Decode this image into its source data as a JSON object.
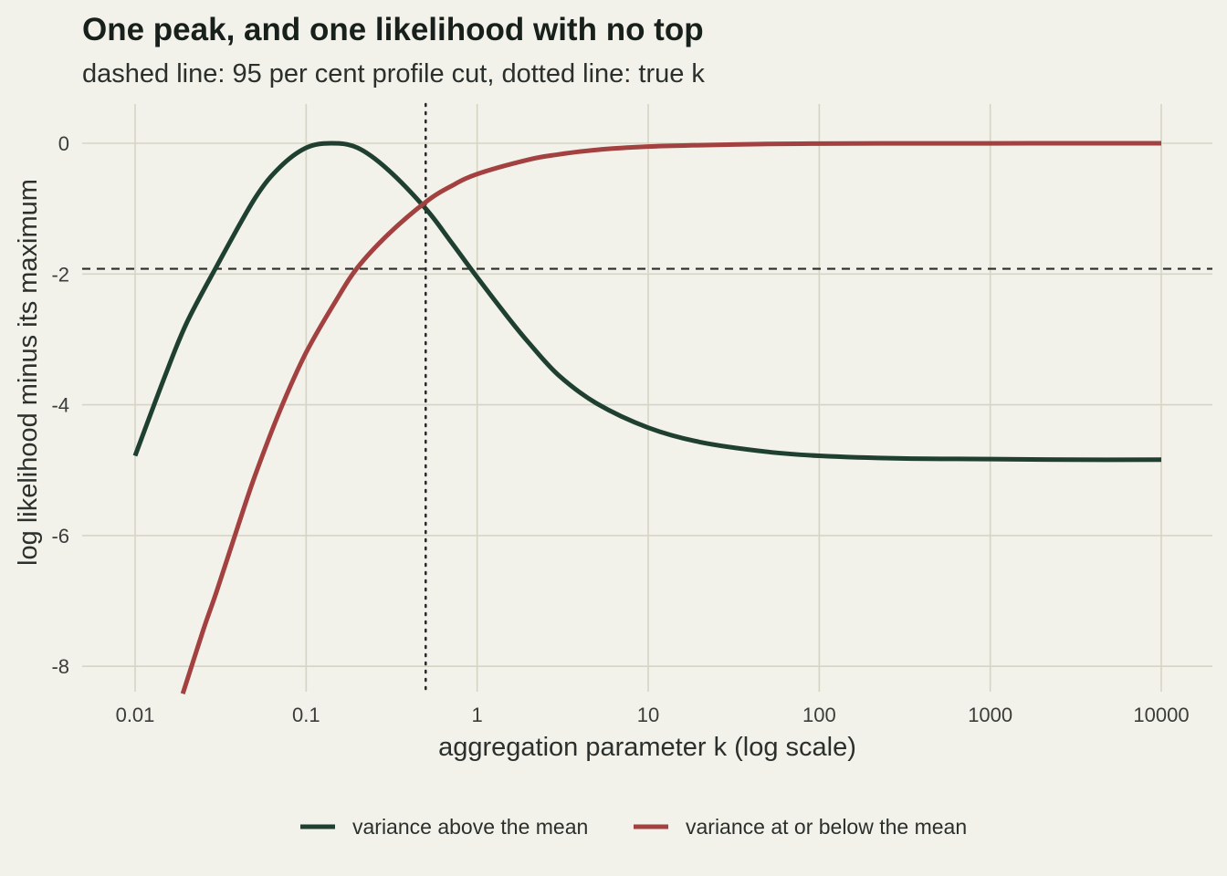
{
  "chart_data": {
    "type": "line",
    "title": "One peak, and one likelihood with no top",
    "subtitle": "dashed line: 95 per cent profile cut, dotted line: true k",
    "xlabel": "aggregation parameter k (log scale)",
    "ylabel": "log likelihood minus its maximum",
    "x_scale": "log10",
    "xlim": [
      0.01,
      10000
    ],
    "ylim": [
      -8.4,
      0.6
    ],
    "x_ticks": [
      0.01,
      0.1,
      1,
      10,
      100,
      1000,
      10000
    ],
    "x_tick_labels": [
      "0.01",
      "0.1",
      "1",
      "10",
      "100",
      "1000",
      "10000"
    ],
    "y_ticks": [
      0,
      -2,
      -4,
      -6,
      -8
    ],
    "y_tick_labels": [
      "0",
      "-2",
      "-4",
      "-6",
      "-8"
    ],
    "grid": true,
    "legend_position": "bottom",
    "reference_lines": {
      "cut_dashed_y": -1.92,
      "true_k_dotted_x": 0.5
    },
    "series": [
      {
        "name": "variance above the mean",
        "color": "#1f4030",
        "x": [
          0.01,
          0.015,
          0.02,
          0.03,
          0.05,
          0.07,
          0.1,
          0.14,
          0.2,
          0.3,
          0.5,
          0.7,
          1,
          1.5,
          2,
          3,
          5,
          10,
          20,
          50,
          100,
          300,
          1000,
          3000,
          10000
        ],
        "y": [
          -4.78,
          -3.55,
          -2.75,
          -1.88,
          -0.85,
          -0.37,
          -0.07,
          0.0,
          -0.07,
          -0.4,
          -1.0,
          -1.5,
          -2.05,
          -2.65,
          -3.05,
          -3.55,
          -3.98,
          -4.35,
          -4.57,
          -4.72,
          -4.78,
          -4.82,
          -4.83,
          -4.84,
          -4.84
        ]
      },
      {
        "name": "variance at or below the mean",
        "color": "#a34040",
        "x": [
          0.019,
          0.025,
          0.03,
          0.04,
          0.05,
          0.07,
          0.1,
          0.15,
          0.2,
          0.3,
          0.5,
          0.7,
          1,
          2,
          3,
          5,
          10,
          20,
          50,
          100,
          300,
          1000,
          3000,
          10000
        ],
        "y": [
          -8.42,
          -7.45,
          -6.85,
          -5.85,
          -5.1,
          -4.1,
          -3.2,
          -2.4,
          -1.9,
          -1.4,
          -0.9,
          -0.66,
          -0.47,
          -0.25,
          -0.17,
          -0.1,
          -0.05,
          -0.03,
          -0.01,
          -0.005,
          -0.002,
          -0.001,
          0.0,
          0.0
        ]
      }
    ]
  },
  "colors": {
    "background": "#f2f1ea",
    "grid": "#d6d5c4",
    "reference_line": "#2c2c2c"
  }
}
